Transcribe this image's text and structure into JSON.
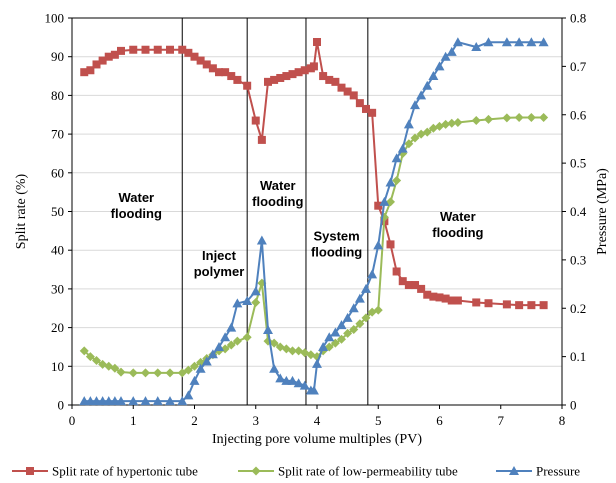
{
  "chart_data": {
    "type": "line",
    "xlabel": "Injecting pore volume  multiples (PV)",
    "ylabel_left": "Split rate (%)",
    "ylabel_right": "Pressure (MPa)",
    "xlim": [
      0,
      8
    ],
    "ylim_left": [
      0,
      100
    ],
    "ylim_right": [
      0,
      0.8
    ],
    "x_ticks": [
      "0",
      "1",
      "2",
      "3",
      "4",
      "5",
      "6",
      "7",
      "8"
    ],
    "y_left_ticks": [
      "0",
      "10",
      "20",
      "30",
      "40",
      "50",
      "60",
      "70",
      "80",
      "90",
      "100"
    ],
    "y_right_ticks": [
      "0",
      "0.1",
      "0.2",
      "0.3",
      "0.4",
      "0.5",
      "0.6",
      "0.7",
      "0.8"
    ],
    "phase_boundaries": [
      1.8,
      2.86,
      3.82,
      4.83
    ],
    "annotations": [
      {
        "lines": [
          "Water",
          "flooding"
        ],
        "x": 1.05,
        "y": 52.5
      },
      {
        "lines": [
          "Inject",
          "polymer"
        ],
        "x": 2.4,
        "y": 37.5
      },
      {
        "lines": [
          "Water",
          "flooding"
        ],
        "x": 3.36,
        "y": 55.5
      },
      {
        "lines": [
          "System",
          "flooding"
        ],
        "x": 4.32,
        "y": 42.5
      },
      {
        "lines": [
          "Water",
          "flooding"
        ],
        "x": 6.3,
        "y": 47.5
      }
    ],
    "series": [
      {
        "name": "Split rate of hypertonic tube",
        "axis": "left",
        "color": "#c0504d",
        "marker": "square",
        "x": [
          0.2,
          0.3,
          0.4,
          0.5,
          0.6,
          0.7,
          0.8,
          1.0,
          1.2,
          1.4,
          1.6,
          1.8,
          1.9,
          2.0,
          2.1,
          2.2,
          2.3,
          2.4,
          2.5,
          2.6,
          2.7,
          2.86,
          3.0,
          3.1,
          3.2,
          3.3,
          3.4,
          3.5,
          3.6,
          3.7,
          3.8,
          3.9,
          3.95,
          4.0,
          4.1,
          4.2,
          4.3,
          4.4,
          4.5,
          4.6,
          4.7,
          4.8,
          4.9,
          5.0,
          5.1,
          5.2,
          5.3,
          5.4,
          5.5,
          5.6,
          5.7,
          5.8,
          5.9,
          6.0,
          6.1,
          6.2,
          6.3,
          6.6,
          6.8,
          7.1,
          7.3,
          7.5,
          7.7
        ],
        "values": [
          86,
          86.5,
          88,
          89,
          90,
          90.5,
          91.5,
          91.8,
          91.8,
          91.8,
          91.8,
          91.8,
          91,
          90,
          89,
          88,
          87,
          86,
          86,
          85,
          84,
          82.5,
          73.5,
          68.5,
          83.5,
          84,
          84.5,
          85,
          85.5,
          86,
          86.5,
          87,
          87.5,
          93.8,
          85,
          84,
          83.5,
          82,
          81,
          80,
          78,
          76.5,
          75.5,
          51.5,
          47.5,
          41.5,
          34.5,
          32,
          31,
          31,
          30,
          28.5,
          28,
          27.8,
          27.5,
          27,
          27,
          26.5,
          26.3,
          26,
          25.8,
          25.8,
          25.8
        ]
      },
      {
        "name": "Split rate of low-permeability tube",
        "axis": "left",
        "color": "#9bbb59",
        "marker": "diamond",
        "x": [
          0.2,
          0.3,
          0.4,
          0.5,
          0.6,
          0.7,
          0.8,
          1.0,
          1.2,
          1.4,
          1.6,
          1.8,
          1.9,
          2.0,
          2.1,
          2.2,
          2.3,
          2.4,
          2.5,
          2.6,
          2.7,
          2.86,
          3.0,
          3.1,
          3.2,
          3.3,
          3.4,
          3.5,
          3.6,
          3.7,
          3.8,
          3.9,
          4.0,
          4.1,
          4.2,
          4.3,
          4.4,
          4.5,
          4.6,
          4.7,
          4.8,
          4.9,
          5.0,
          5.1,
          5.2,
          5.3,
          5.4,
          5.5,
          5.6,
          5.7,
          5.8,
          5.9,
          6.0,
          6.1,
          6.2,
          6.3,
          6.6,
          6.8,
          7.1,
          7.3,
          7.5,
          7.7
        ],
        "values": [
          14,
          12.5,
          11.5,
          10.5,
          10,
          9.5,
          8.5,
          8.3,
          8.3,
          8.3,
          8.3,
          8.3,
          9,
          10,
          11,
          12,
          13,
          14,
          14.5,
          15.5,
          16.5,
          17.5,
          26.5,
          31.5,
          16.5,
          16,
          15,
          14.5,
          14,
          14,
          13.5,
          13,
          12.5,
          14,
          15,
          16,
          17,
          18.5,
          19.5,
          21,
          22.5,
          24,
          24.5,
          48.5,
          52.5,
          58,
          65,
          67.5,
          69,
          70,
          70.5,
          71.5,
          72,
          72.5,
          72.8,
          73,
          73.5,
          73.8,
          74.2,
          74.3,
          74.3,
          74.3
        ]
      },
      {
        "name": "Pressure",
        "axis": "right",
        "color": "#4f81bd",
        "marker": "triangle",
        "x": [
          0.2,
          0.3,
          0.4,
          0.5,
          0.6,
          0.7,
          0.8,
          1.0,
          1.2,
          1.4,
          1.6,
          1.8,
          1.9,
          2.0,
          2.1,
          2.2,
          2.3,
          2.4,
          2.5,
          2.6,
          2.7,
          2.86,
          3.0,
          3.1,
          3.2,
          3.3,
          3.4,
          3.5,
          3.6,
          3.7,
          3.8,
          3.9,
          3.95,
          4.0,
          4.1,
          4.2,
          4.3,
          4.4,
          4.5,
          4.6,
          4.7,
          4.8,
          4.9,
          5.0,
          5.1,
          5.2,
          5.3,
          5.4,
          5.5,
          5.6,
          5.7,
          5.8,
          5.9,
          6.0,
          6.1,
          6.2,
          6.3,
          6.6,
          6.8,
          7.1,
          7.3,
          7.5,
          7.7
        ],
        "values": [
          0.008,
          0.008,
          0.008,
          0.008,
          0.008,
          0.008,
          0.008,
          0.008,
          0.008,
          0.008,
          0.008,
          0.008,
          0.02,
          0.05,
          0.075,
          0.09,
          0.105,
          0.12,
          0.14,
          0.16,
          0.21,
          0.215,
          0.235,
          0.34,
          0.155,
          0.075,
          0.055,
          0.05,
          0.05,
          0.045,
          0.04,
          0.03,
          0.03,
          0.085,
          0.12,
          0.14,
          0.15,
          0.165,
          0.18,
          0.2,
          0.22,
          0.24,
          0.27,
          0.33,
          0.42,
          0.46,
          0.51,
          0.53,
          0.58,
          0.62,
          0.64,
          0.66,
          0.68,
          0.7,
          0.72,
          0.73,
          0.75,
          0.74,
          0.75,
          0.75,
          0.75,
          0.75,
          0.75
        ]
      }
    ]
  }
}
